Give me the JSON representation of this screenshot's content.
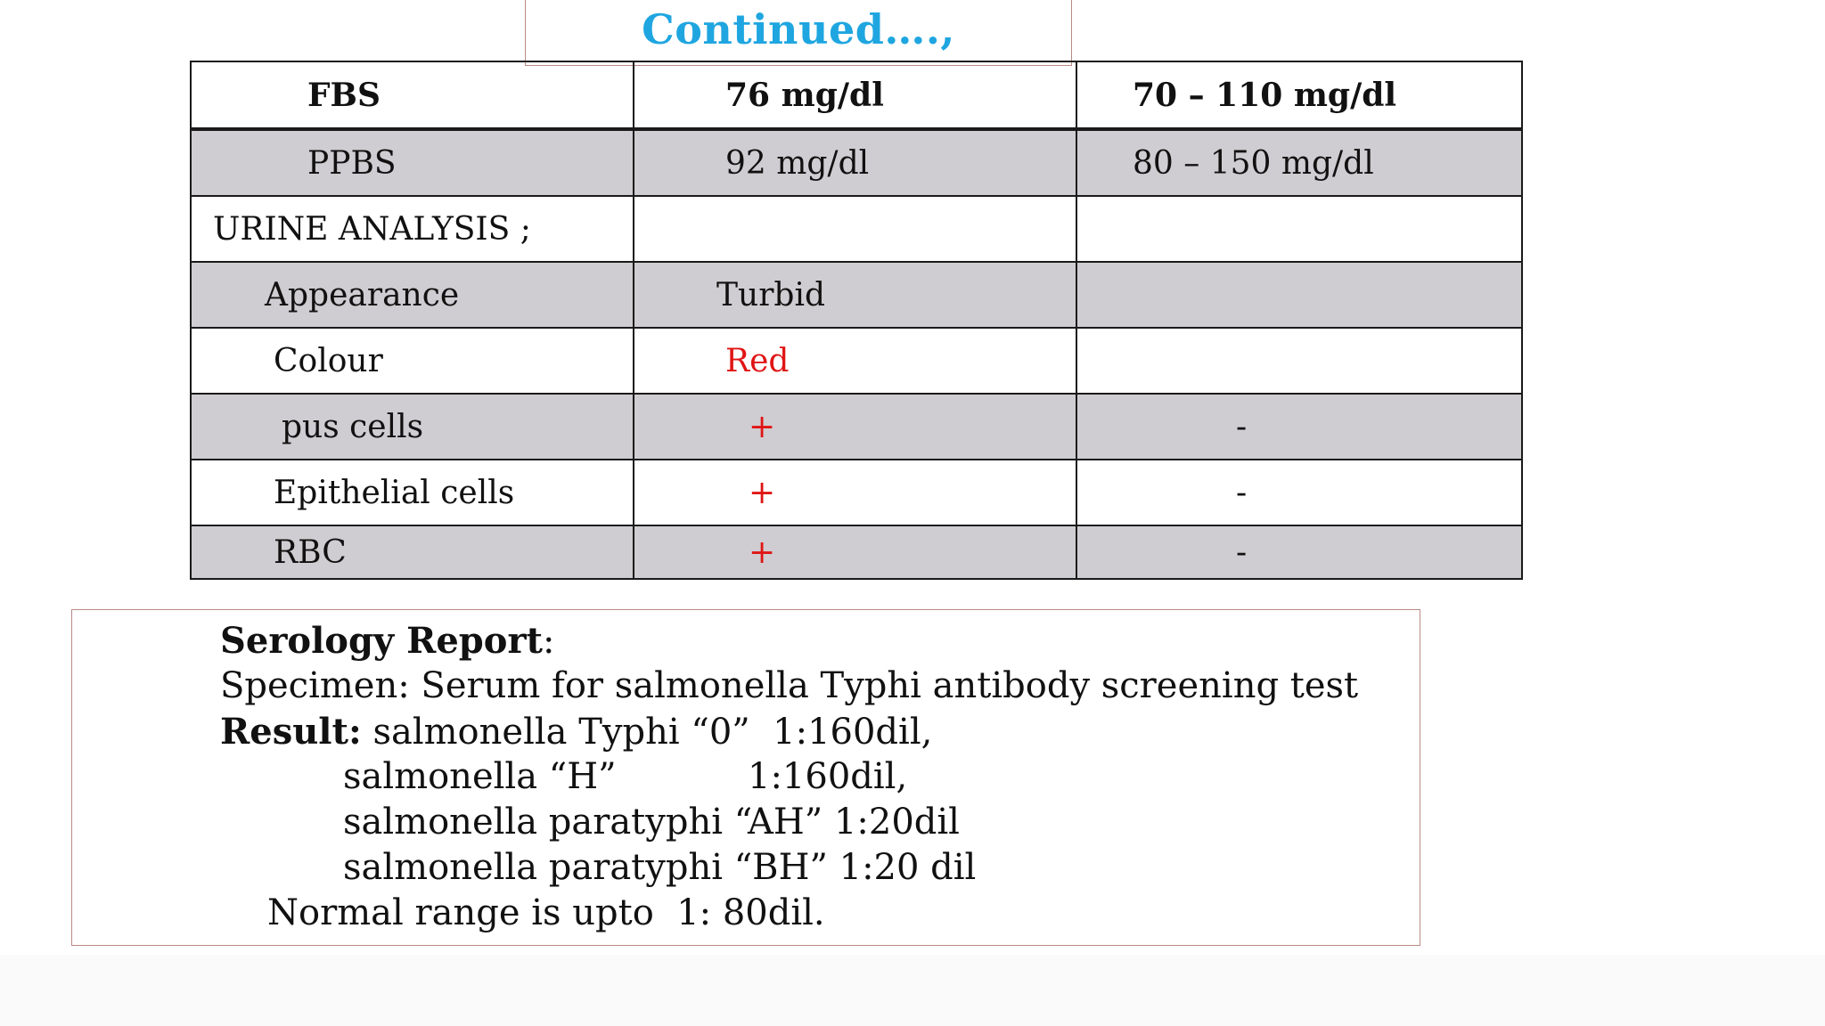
{
  "title": "Continued….,",
  "table": {
    "rows": [
      {
        "test": "FBS",
        "value": "76 mg/dl",
        "range": "70 – 110 mg/dl"
      },
      {
        "test": "PPBS",
        "value": "92 mg/dl",
        "range": "80 – 150 mg/dl"
      },
      {
        "test": "URINE ANALYSIS ;",
        "value": "",
        "range": ""
      },
      {
        "test": "Appearance",
        "value": "Turbid",
        "range": ""
      },
      {
        "test": "Colour",
        "value": "Red",
        "range": ""
      },
      {
        "test": "pus cells",
        "value": "+",
        "range": "-"
      },
      {
        "test": "Epithelial cells",
        "value": "+",
        "range": "-"
      },
      {
        "test": "RBC",
        "value": "+",
        "range": "-"
      }
    ]
  },
  "serology": {
    "heading": "Serology Report",
    "heading_suffix": ":",
    "specimen": "Specimen: Serum for salmonella Typhi antibody screening test",
    "result_label": "Result:",
    "result_1": "salmonella Typhi “0”  1:160dil,",
    "result_2_name": "salmonella “H”",
    "result_2_value": "1:160dil,",
    "result_3": "salmonella paratyphi “AH” 1:20dil",
    "result_4": "salmonella paratyphi “BH” 1:20 dil",
    "normal_range": "Normal range is upto  1: 80dil."
  },
  "colors": {
    "title": "#1fa6e0",
    "abnormal": "#e01515",
    "shade": "#cfcdd1",
    "box_border": "#b98a84"
  }
}
